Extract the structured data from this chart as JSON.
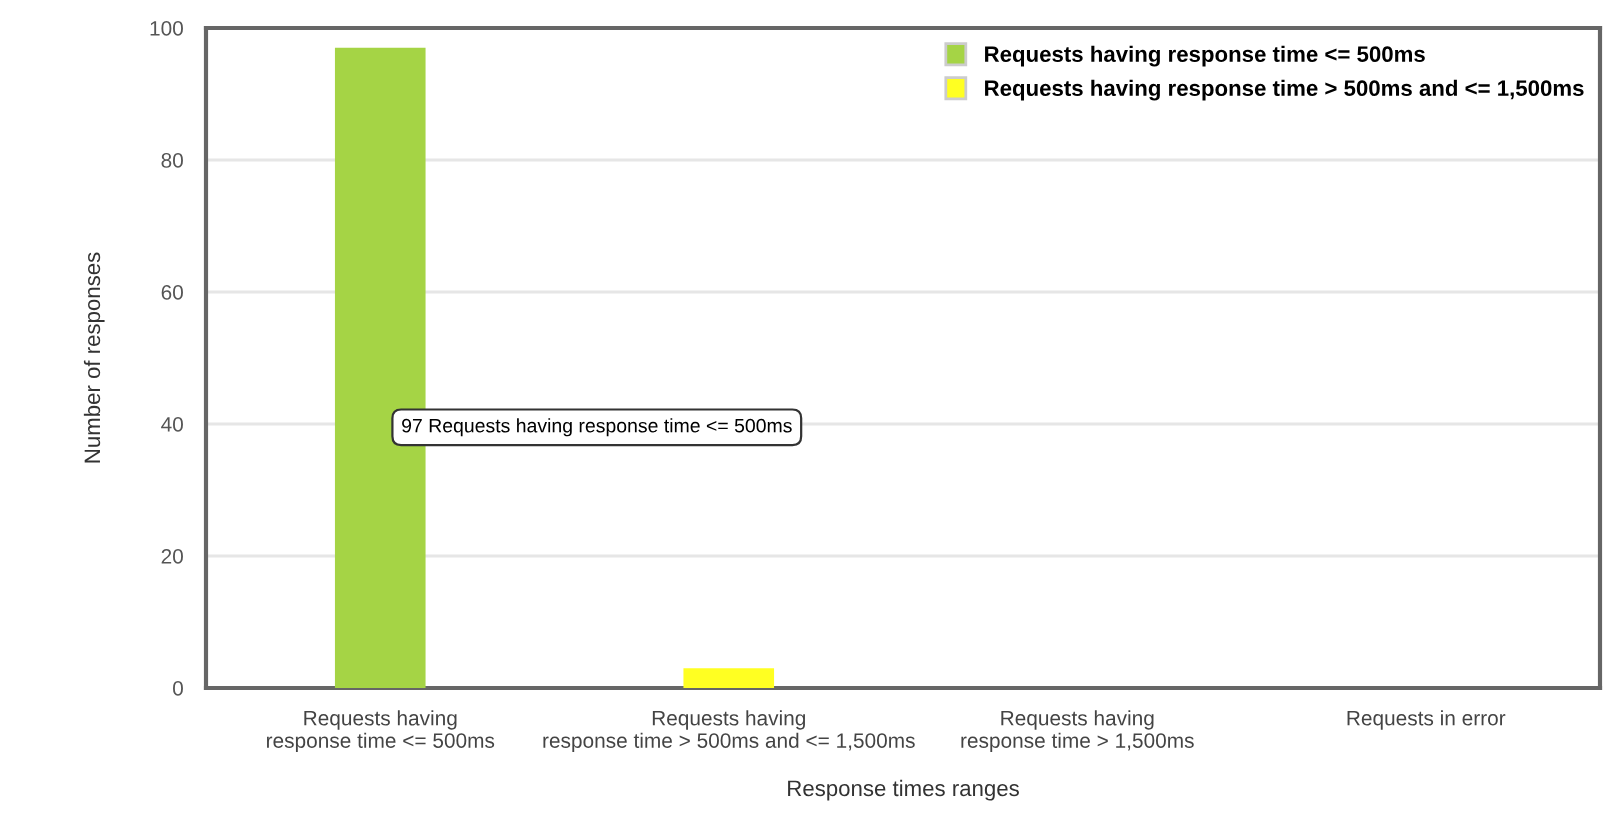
{
  "chart_data": {
    "type": "bar",
    "categories": [
      "Requests having\nresponse time <= 500ms",
      "Requests having\nresponse time > 500ms and <= 1,500ms",
      "Requests having\nresponse time > 1,500ms",
      "Requests in error"
    ],
    "series": [
      {
        "name": "Requests having response time <= 500ms",
        "color": "#a5d445",
        "values": [
          97,
          null,
          null,
          null
        ]
      },
      {
        "name": "Requests having response time > 500ms and <= 1,500ms",
        "color": "#ffff22",
        "values": [
          null,
          3,
          null,
          null
        ]
      }
    ],
    "xlabel": "Response times ranges",
    "ylabel": "Number of responses",
    "ylim": [
      0,
      100
    ],
    "yticks": [
      0,
      20,
      40,
      60,
      80,
      100
    ],
    "grid": "y",
    "legend": "top right",
    "annotations": [
      "97 Requests having response time <= 500ms"
    ]
  }
}
